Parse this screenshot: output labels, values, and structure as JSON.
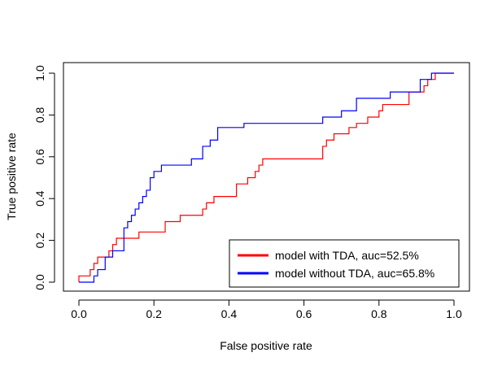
{
  "chart_data": {
    "type": "line",
    "title": "",
    "xlabel": "False positive rate",
    "ylabel": "True positive rate",
    "xlim": [
      0,
      1
    ],
    "ylim": [
      0,
      1
    ],
    "xticks": [
      "0.0",
      "0.2",
      "0.4",
      "0.6",
      "0.8",
      "1.0"
    ],
    "yticks": [
      "0.0",
      "0.2",
      "0.4",
      "0.6",
      "0.8",
      "1.0"
    ],
    "grid": false,
    "legend_position": "bottom-right",
    "series": [
      {
        "name": "model with TDA, auc=52.5%",
        "color": "#ff0000",
        "x": [
          0.0,
          0.0,
          0.03,
          0.03,
          0.04,
          0.04,
          0.05,
          0.05,
          0.06,
          0.06,
          0.08,
          0.08,
          0.09,
          0.09,
          0.1,
          0.1,
          0.13,
          0.13,
          0.16,
          0.16,
          0.19,
          0.19,
          0.23,
          0.23,
          0.27,
          0.27,
          0.33,
          0.33,
          0.34,
          0.34,
          0.36,
          0.36,
          0.42,
          0.42,
          0.45,
          0.45,
          0.47,
          0.47,
          0.48,
          0.48,
          0.49,
          0.49,
          0.5,
          0.5,
          0.65,
          0.65,
          0.66,
          0.66,
          0.68,
          0.68,
          0.72,
          0.72,
          0.74,
          0.74,
          0.77,
          0.77,
          0.8,
          0.8,
          0.81,
          0.81,
          0.82,
          0.82,
          0.83,
          0.83,
          0.88,
          0.88,
          0.92,
          0.92,
          0.93,
          0.93,
          0.95,
          0.95,
          1.0
        ],
        "y": [
          0.0,
          0.03,
          0.03,
          0.06,
          0.06,
          0.09,
          0.09,
          0.12,
          0.12,
          0.12,
          0.12,
          0.15,
          0.15,
          0.18,
          0.18,
          0.21,
          0.21,
          0.21,
          0.21,
          0.24,
          0.24,
          0.24,
          0.24,
          0.29,
          0.29,
          0.32,
          0.32,
          0.35,
          0.35,
          0.38,
          0.38,
          0.41,
          0.41,
          0.47,
          0.47,
          0.5,
          0.5,
          0.53,
          0.53,
          0.56,
          0.56,
          0.59,
          0.59,
          0.59,
          0.59,
          0.65,
          0.65,
          0.68,
          0.68,
          0.71,
          0.71,
          0.74,
          0.74,
          0.76,
          0.76,
          0.79,
          0.79,
          0.82,
          0.82,
          0.85,
          0.85,
          0.85,
          0.85,
          0.85,
          0.85,
          0.91,
          0.91,
          0.94,
          0.94,
          0.97,
          0.97,
          1.0,
          1.0
        ]
      },
      {
        "name": "model without TDA, auc=65.8%",
        "color": "#0000ff",
        "x": [
          0.0,
          0.04,
          0.04,
          0.05,
          0.05,
          0.07,
          0.07,
          0.09,
          0.09,
          0.12,
          0.12,
          0.13,
          0.13,
          0.14,
          0.14,
          0.15,
          0.15,
          0.16,
          0.16,
          0.17,
          0.17,
          0.18,
          0.18,
          0.19,
          0.19,
          0.2,
          0.2,
          0.22,
          0.22,
          0.3,
          0.3,
          0.33,
          0.33,
          0.35,
          0.35,
          0.37,
          0.37,
          0.44,
          0.44,
          0.65,
          0.65,
          0.7,
          0.7,
          0.74,
          0.74,
          0.83,
          0.83,
          0.91,
          0.91,
          0.93,
          0.93,
          0.94,
          0.94,
          1.0
        ],
        "y": [
          0.0,
          0.0,
          0.03,
          0.03,
          0.06,
          0.06,
          0.12,
          0.12,
          0.15,
          0.15,
          0.26,
          0.26,
          0.29,
          0.29,
          0.32,
          0.32,
          0.35,
          0.35,
          0.38,
          0.38,
          0.41,
          0.41,
          0.44,
          0.44,
          0.5,
          0.5,
          0.53,
          0.53,
          0.56,
          0.56,
          0.59,
          0.59,
          0.65,
          0.65,
          0.68,
          0.68,
          0.74,
          0.74,
          0.76,
          0.76,
          0.79,
          0.79,
          0.82,
          0.82,
          0.88,
          0.88,
          0.91,
          0.91,
          0.97,
          0.97,
          0.97,
          0.97,
          1.0,
          1.0
        ]
      }
    ]
  }
}
